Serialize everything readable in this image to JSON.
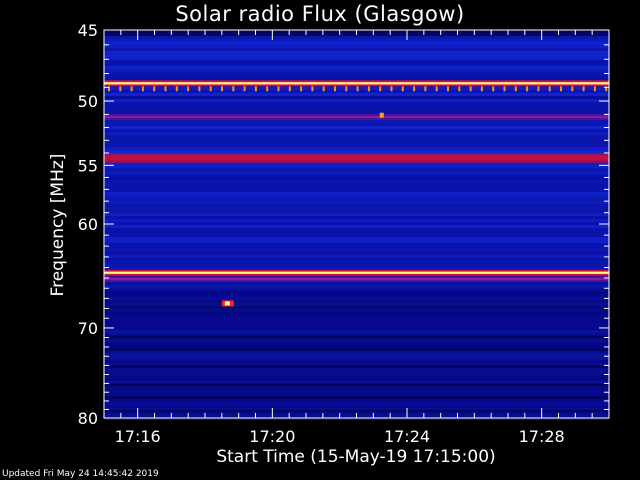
{
  "chart_data": {
    "type": "heatmap",
    "title": "Solar radio Flux (Glasgow)",
    "xlabel": "Start Time (15-May-19 17:15:00)",
    "ylabel": "Frequency [MHz]",
    "x_tick_labels": [
      "17:16",
      "17:20",
      "17:24",
      "17:28"
    ],
    "x_range_minutes": [
      15.0,
      30.0
    ],
    "x_tick_values_minutes": [
      16,
      20,
      24,
      28
    ],
    "y_tick_labels": [
      "45",
      "50",
      "55",
      "60",
      "70",
      "80"
    ],
    "y_ticks": [
      45,
      50,
      55,
      60,
      70,
      80
    ],
    "ylim": [
      45,
      80
    ],
    "y_scale": "log",
    "colormap": [
      "#000020",
      "#0000a0",
      "#1030ff",
      "#c00040",
      "#ff2020",
      "#ffff80"
    ],
    "bands_mhz": [
      {
        "freq": 48.7,
        "level": "very high"
      },
      {
        "freq": 51.2,
        "level": "moderate"
      },
      {
        "freq": 54.4,
        "level": "high"
      },
      {
        "freq": 64.5,
        "level": "very high"
      },
      {
        "freq": 65.1,
        "level": "moderate"
      }
    ],
    "bursts": [
      {
        "time_minutes": 18.65,
        "freq": 67.5,
        "level": "very high"
      },
      {
        "time_minutes": 23.25,
        "freq": 51.1,
        "level": "high"
      }
    ]
  },
  "footer": {
    "updated": "Updated Fri May 24 14:45:42 2019"
  }
}
